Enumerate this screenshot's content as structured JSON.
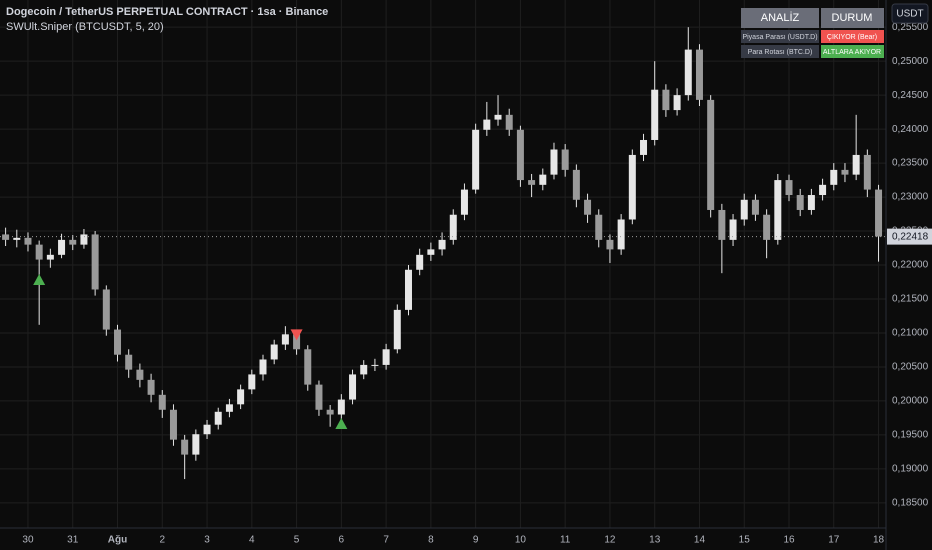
{
  "header": {
    "title": "Dogecoin / TetherUS PERPETUAL CONTRACT · 1sa · Binance",
    "indicator": "SWUlt.Sniper (BTCUSDT, 5, 20)",
    "currency_button": "USDT"
  },
  "table": {
    "header": [
      "ANALİZ",
      "DURUM"
    ],
    "rows": [
      [
        "Piyasa Parası (USDT.D)",
        "ÇIKIYOR (Bear)"
      ],
      [
        "Para Rotası (BTC.D)",
        "ALTLARA AKIYOR"
      ]
    ],
    "status_colors": [
      "#f05350",
      "#4caf50"
    ]
  },
  "chart_data": {
    "type": "candlestick",
    "color": "#e6e6e6",
    "x": [
      -12,
      -6,
      0,
      6,
      12,
      18,
      24,
      30,
      36,
      42,
      48,
      54,
      60,
      66,
      72,
      78,
      84,
      90,
      96,
      102,
      108,
      114,
      120,
      126,
      132,
      138,
      144,
      150,
      156,
      162,
      168,
      174,
      180,
      186,
      192,
      198,
      204,
      210,
      216,
      222,
      228,
      234,
      240,
      246,
      252,
      258,
      264,
      270,
      276,
      282,
      288,
      294,
      300,
      306,
      312,
      318,
      324,
      330,
      336,
      342,
      348,
      354,
      360,
      366,
      372,
      378,
      384,
      390,
      396,
      402,
      408,
      414,
      420,
      426,
      432,
      438,
      444,
      450,
      456
    ],
    "open": [
      0.2245,
      0.2237,
      0.224,
      0.223,
      0.2208,
      0.2215,
      0.2237,
      0.223,
      0.2245,
      0.2164,
      0.2105,
      0.2068,
      0.2046,
      0.2031,
      0.2009,
      0.1987,
      0.1943,
      0.1921,
      0.1951,
      0.1965,
      0.1984,
      0.1995,
      0.2017,
      0.2039,
      0.2061,
      0.2083,
      0.2098,
      0.2076,
      0.2024,
      0.1987,
      0.198,
      0.2002,
      0.2039,
      0.2053,
      0.2053,
      0.2076,
      0.2134,
      0.2193,
      0.2215,
      0.2223,
      0.2237,
      0.2274,
      0.2311,
      0.2399,
      0.2414,
      0.2421,
      0.2399,
      0.2325,
      0.2318,
      0.2333,
      0.237,
      0.234,
      0.2296,
      0.2274,
      0.2237,
      0.2223,
      0.2267,
      0.2362,
      0.2384,
      0.2458,
      0.2428,
      0.245,
      0.2517,
      0.2443,
      0.2281,
      0.2237,
      0.2267,
      0.2296,
      0.2274,
      0.2237,
      0.2325,
      0.2303,
      0.2281,
      0.2303,
      0.2318,
      0.234,
      0.2333,
      0.2362,
      0.2311
    ],
    "high": [
      0.2255,
      0.2252,
      0.2248,
      0.2236,
      0.2224,
      0.2246,
      0.2244,
      0.2253,
      0.225,
      0.217,
      0.2112,
      0.2076,
      0.2055,
      0.204,
      0.2016,
      0.1995,
      0.195,
      0.1958,
      0.1972,
      0.199,
      0.2003,
      0.2024,
      0.2046,
      0.2068,
      0.209,
      0.211,
      0.2105,
      0.2082,
      0.203,
      0.1994,
      0.201,
      0.2046,
      0.206,
      0.2062,
      0.2084,
      0.2142,
      0.22,
      0.2224,
      0.2233,
      0.2248,
      0.2282,
      0.232,
      0.2408,
      0.244,
      0.245,
      0.243,
      0.2405,
      0.2334,
      0.2342,
      0.238,
      0.2378,
      0.2348,
      0.2305,
      0.2282,
      0.2245,
      0.2275,
      0.237,
      0.2393,
      0.25,
      0.2466,
      0.246,
      0.255,
      0.2525,
      0.245,
      0.229,
      0.2275,
      0.2305,
      0.2304,
      0.2282,
      0.2334,
      0.2333,
      0.2312,
      0.2312,
      0.2327,
      0.235,
      0.235,
      0.2421,
      0.237,
      0.2318
    ],
    "low": [
      0.2228,
      0.2226,
      0.222,
      0.2112,
      0.2196,
      0.221,
      0.2222,
      0.2224,
      0.2155,
      0.2096,
      0.2058,
      0.2034,
      0.202,
      0.1998,
      0.1975,
      0.1934,
      0.1885,
      0.1912,
      0.1944,
      0.1958,
      0.1976,
      0.1988,
      0.201,
      0.203,
      0.2054,
      0.2075,
      0.2068,
      0.2015,
      0.1978,
      0.1962,
      0.1972,
      0.1995,
      0.2032,
      0.2044,
      0.2046,
      0.207,
      0.2126,
      0.2185,
      0.2206,
      0.2214,
      0.223,
      0.2266,
      0.2305,
      0.239,
      0.2405,
      0.239,
      0.2315,
      0.23,
      0.231,
      0.2326,
      0.233,
      0.2285,
      0.2262,
      0.2226,
      0.2203,
      0.2215,
      0.226,
      0.2353,
      0.2376,
      0.2418,
      0.242,
      0.2442,
      0.2434,
      0.227,
      0.2188,
      0.2228,
      0.2258,
      0.2265,
      0.221,
      0.223,
      0.2294,
      0.2272,
      0.2274,
      0.2295,
      0.231,
      0.2322,
      0.2325,
      0.23,
      0.2205
    ],
    "close": [
      0.2237,
      0.224,
      0.223,
      0.2208,
      0.2215,
      0.2237,
      0.223,
      0.2245,
      0.2164,
      0.2105,
      0.2068,
      0.2046,
      0.2031,
      0.2009,
      0.1987,
      0.1943,
      0.1921,
      0.1951,
      0.1965,
      0.1984,
      0.1995,
      0.2017,
      0.2039,
      0.2061,
      0.2083,
      0.2098,
      0.2076,
      0.2024,
      0.1987,
      0.198,
      0.2002,
      0.2039,
      0.2053,
      0.2053,
      0.2076,
      0.2134,
      0.2193,
      0.2215,
      0.2223,
      0.2237,
      0.2274,
      0.2311,
      0.2399,
      0.2414,
      0.2421,
      0.2399,
      0.2325,
      0.2318,
      0.2333,
      0.237,
      0.234,
      0.2296,
      0.2274,
      0.2237,
      0.2223,
      0.2267,
      0.2362,
      0.2384,
      0.2458,
      0.2428,
      0.245,
      0.2517,
      0.2443,
      0.2281,
      0.2237,
      0.2267,
      0.2296,
      0.2274,
      0.2237,
      0.2325,
      0.2303,
      0.2281,
      0.2303,
      0.2318,
      0.234,
      0.2333,
      0.2362,
      0.2311,
      0.2242
    ],
    "signals": [
      {
        "x": 6,
        "price": 0.2178,
        "color": "#4caf50",
        "shape": "up"
      },
      {
        "x": 144,
        "price": 0.2098,
        "color": "#f05350",
        "shape": "down"
      },
      {
        "x": 168,
        "price": 0.1966,
        "color": "#4caf50",
        "shape": "up"
      }
    ],
    "last_price": {
      "value": 0.22418,
      "label": "0,22418"
    },
    "xlim": [
      -15,
      460
    ],
    "ylim": [
      0.1813,
      0.259
    ],
    "grid": true,
    "xticks": [
      {
        "value": 0,
        "label": "30"
      },
      {
        "value": 24,
        "label": "31"
      },
      {
        "value": 48,
        "label": "Ağu"
      },
      {
        "value": 72,
        "label": "2"
      },
      {
        "value": 96,
        "label": "3"
      },
      {
        "value": 120,
        "label": "4"
      },
      {
        "value": 144,
        "label": "5"
      },
      {
        "value": 168,
        "label": "6"
      },
      {
        "value": 192,
        "label": "7"
      },
      {
        "value": 216,
        "label": "8"
      },
      {
        "value": 240,
        "label": "9"
      },
      {
        "value": 264,
        "label": "10"
      },
      {
        "value": 288,
        "label": "11"
      },
      {
        "value": 312,
        "label": "12"
      },
      {
        "value": 336,
        "label": "13"
      },
      {
        "value": 360,
        "label": "14"
      },
      {
        "value": 384,
        "label": "15"
      },
      {
        "value": 408,
        "label": "16"
      },
      {
        "value": 432,
        "label": "17"
      },
      {
        "value": 456,
        "label": "18"
      }
    ],
    "yticks": [
      {
        "value": 0.185,
        "label": "0,18500"
      },
      {
        "value": 0.19,
        "label": "0,19000"
      },
      {
        "value": 0.195,
        "label": "0,19500"
      },
      {
        "value": 0.2,
        "label": "0,20000"
      },
      {
        "value": 0.205,
        "label": "0,20500"
      },
      {
        "value": 0.21,
        "label": "0,21000"
      },
      {
        "value": 0.215,
        "label": "0,21500"
      },
      {
        "value": 0.22,
        "label": "0,22000"
      },
      {
        "value": 0.225,
        "label": "0,22500"
      },
      {
        "value": 0.23,
        "label": "0,23000"
      },
      {
        "value": 0.235,
        "label": "0,23500"
      },
      {
        "value": 0.24,
        "label": "0,24000"
      },
      {
        "value": 0.245,
        "label": "0,24500"
      },
      {
        "value": 0.25,
        "label": "0,25000"
      },
      {
        "value": 0.255,
        "label": "0,25500"
      }
    ]
  }
}
